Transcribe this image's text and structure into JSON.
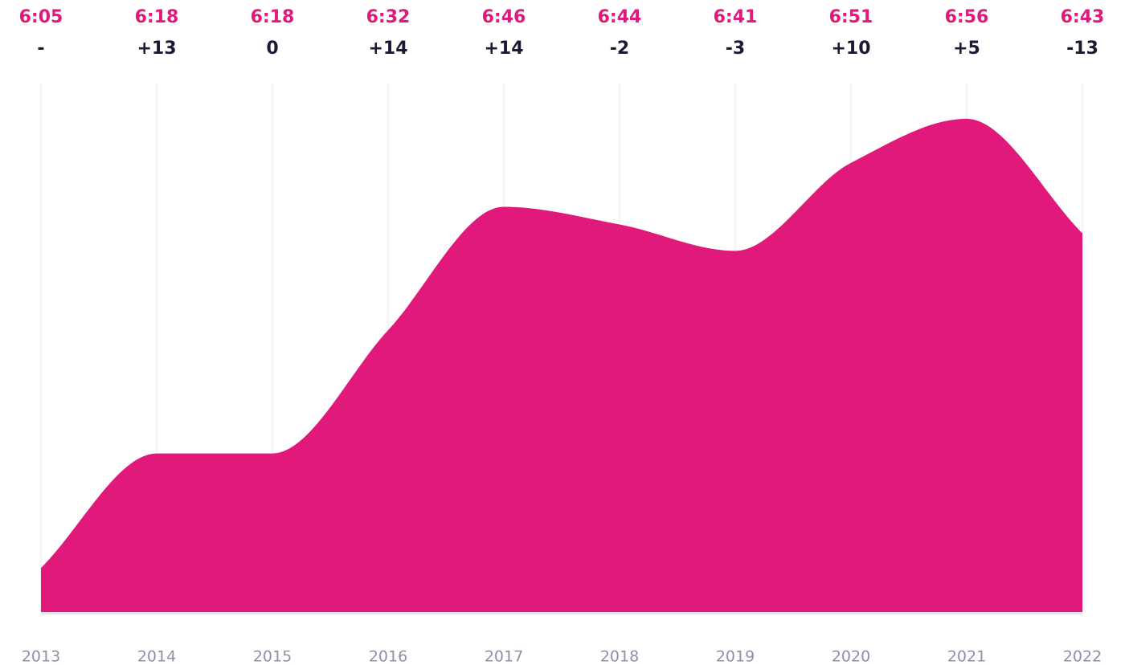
{
  "chart_data": {
    "type": "area",
    "categories": [
      "2013",
      "2014",
      "2015",
      "2016",
      "2017",
      "2018",
      "2019",
      "2020",
      "2021",
      "2022"
    ],
    "values": [
      365,
      378,
      378,
      392,
      406,
      404,
      401,
      411,
      416,
      403
    ],
    "value_labels": [
      "6:05",
      "6:18",
      "6:18",
      "6:32",
      "6:46",
      "6:44",
      "6:41",
      "6:51",
      "6:56",
      "6:43"
    ],
    "changes": [
      "-",
      "+13",
      "0",
      "+14",
      "+14",
      "-2",
      "-3",
      "+10",
      "+5",
      "-13"
    ],
    "color": "#e0197a",
    "ylim": [
      360,
      420
    ],
    "grid": true
  }
}
